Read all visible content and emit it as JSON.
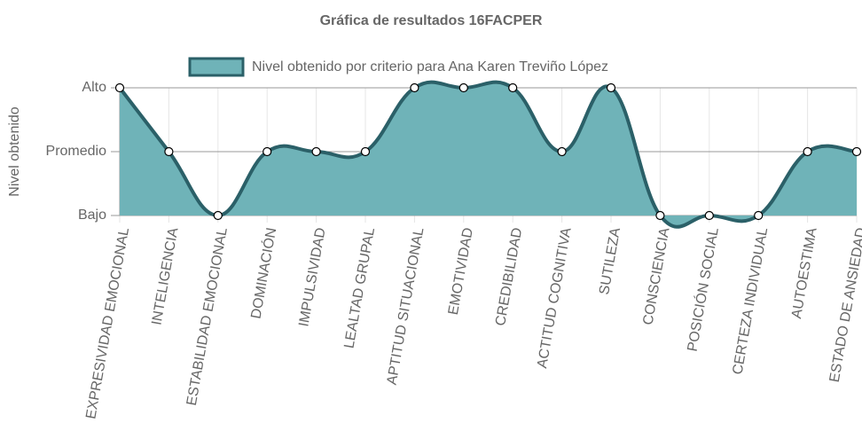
{
  "chart_data": {
    "type": "line",
    "title": "Gráfica de resultados 16FACPER",
    "y_label": "Nivel obtenido",
    "categories": [
      "EXPRESIVIDAD EMOCIONAL",
      "INTELIGENCIA",
      "ESTABILIDAD EMOCIONAL",
      "DOMINACIÓN",
      "IMPULSIVIDAD",
      "LEALTAD GRUPAL",
      "APTITUD SITUACIONAL",
      "EMOTIVIDAD",
      "CREDIBILIDAD",
      "ACTITUD COGNITIVA",
      "SUTILEZA",
      "CONSCIENCIA",
      "POSICIÓN SOCIAL",
      "CERTEZA INDIVIDUAL",
      "AUTOESTIMA",
      "ESTADO DE ANSIEDAD"
    ],
    "series": [
      {
        "name": "Nivel obtenido por criterio para Ana Karen Treviño López",
        "color": "#2b6068",
        "fill": "#6fb3b8",
        "values": [
          2,
          1,
          0,
          1,
          1,
          1,
          2,
          2,
          2,
          1,
          2,
          0,
          0,
          0,
          1,
          1
        ]
      }
    ],
    "ylim": [
      0,
      2
    ],
    "yticks": [
      {
        "value": 0,
        "label": "Bajo"
      },
      {
        "value": 1,
        "label": "Promedio"
      },
      {
        "value": 2,
        "label": "Alto"
      }
    ],
    "grid": true,
    "legend": "top"
  }
}
